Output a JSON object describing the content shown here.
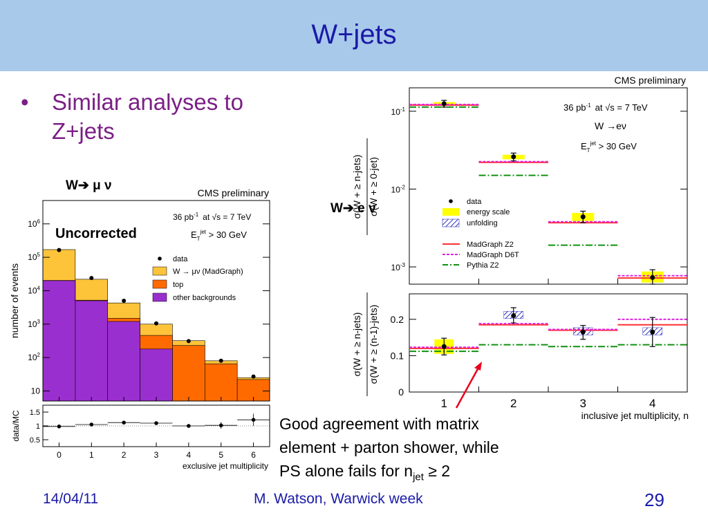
{
  "slide": {
    "title": "W+jets",
    "bullet": "Similar analyses to Z+jets",
    "label_wmu": "W➔ μ ν",
    "label_wenu": "W➔ e ν",
    "note_line1": "Good agreement with matrix",
    "note_line2": "element + parton shower, while",
    "note_line3_prefix": "PS alone fails for n",
    "note_line3_sub": "jet",
    "note_line3_suffix": " ≥ 2",
    "footer_date": "14/04/11",
    "footer_author": "M. Watson, Warwick week",
    "footer_page": "29",
    "colors": {
      "header": "#a9c9ea",
      "title": "#1a1aa8",
      "bullet": "#7b1f86",
      "arrow": "#e8001c"
    }
  },
  "chart_data": [
    {
      "type": "bar",
      "stacked": true,
      "log_y": true,
      "title": "CMS preliminary",
      "ylabel": "number of events",
      "xlabel": "exclusive jet multiplicity",
      "annotation_corner": "Uncorrected",
      "text_lumi": "36 pb",
      "text_lumi_sup": "-1",
      "text_energy": "at √s = 7 TeV",
      "text_cut_main": "E",
      "text_cut_sub": "T",
      "text_cut_sup": "jet",
      "text_cut_rest": " > 30 GeV",
      "categories": [
        "0",
        "1",
        "2",
        "3",
        "4",
        "5",
        "6"
      ],
      "ylim": [
        5,
        5000000
      ],
      "yticks": [
        {
          "value": 10,
          "label": "10"
        },
        {
          "value": 100,
          "label": "10",
          "sup": "2"
        },
        {
          "value": 1000,
          "label": "10",
          "sup": "3"
        },
        {
          "value": 10000,
          "label": "10",
          "sup": "4"
        },
        {
          "value": 100000,
          "label": "10",
          "sup": "5"
        },
        {
          "value": 1000000,
          "label": "10",
          "sup": "6"
        }
      ],
      "series": [
        {
          "name": "other backgrounds",
          "color": "#9a2fcf",
          "top": [
            20000,
            5000,
            1200,
            180,
            5,
            5,
            5
          ]
        },
        {
          "name": "top",
          "color": "#ff6a00",
          "top": [
            20300,
            5200,
            1500,
            460,
            230,
            65,
            22
          ]
        },
        {
          "name": "W → μν (MadGraph)",
          "color": "#fdc43a",
          "top": [
            170000,
            22000,
            4300,
            1000,
            320,
            80,
            25
          ]
        }
      ],
      "data": {
        "name": "data",
        "values": [
          165000,
          24000,
          5000,
          1050,
          310,
          80,
          27
        ]
      },
      "ratio": {
        "ylabel": "data/MC",
        "ylim": [
          0.25,
          1.75
        ],
        "yticks": [
          0.5,
          1,
          1.5
        ],
        "ytick_labels": [
          "0.5",
          "1",
          "1.5"
        ],
        "values": [
          0.98,
          1.05,
          1.12,
          1.1,
          1.0,
          1.02,
          1.22
        ],
        "errors": [
          0.01,
          0.01,
          0.02,
          0.03,
          0.06,
          0.12,
          0.22
        ]
      }
    },
    {
      "type": "line",
      "log_y": true,
      "title": "CMS preliminary",
      "ylabel_line1": "σ(W + ≥ n-jets)",
      "ylabel_line2": "σ(W + ≥ 0-jet)",
      "text_lumi": "36 pb",
      "text_lumi_sup": "-1",
      "text_energy": "at √s = 7 TeV",
      "text_channel": "W →eν",
      "text_cut_main": "E",
      "text_cut_sub": "T",
      "text_cut_sup": "jet",
      "text_cut_rest": " > 30 GeV",
      "x_categories": [
        "1",
        "2",
        "3",
        "4"
      ],
      "xlabel": "inclusive jet multiplicity, n",
      "ylim": [
        0.0006,
        0.2
      ],
      "yticks": [
        {
          "value": 0.1,
          "label": "10",
          "sup": "-1"
        },
        {
          "value": 0.01,
          "label": "10",
          "sup": "-2"
        },
        {
          "value": 0.001,
          "label": "10",
          "sup": "-3"
        }
      ],
      "legend": [
        "data",
        "energy scale",
        "unfolding",
        "MadGraph Z2",
        "MadGraph D6T",
        "Pythia Z2"
      ],
      "colors": {
        "madgraph_z2": "#ff3030",
        "madgraph_d6t": "#e020e0",
        "pythia_z2": "#109010",
        "energy_scale": "#ffff00",
        "unfolding": "#3030c0"
      },
      "data": [
        0.125,
        0.026,
        0.0044,
        0.00073
      ],
      "data_err_low": [
        0.113,
        0.023,
        0.0037,
        0.0006
      ],
      "data_err_high": [
        0.138,
        0.029,
        0.0052,
        0.00092
      ],
      "madgraph_z2": [
        0.12,
        0.022,
        0.0037,
        0.00072
      ],
      "madgraph_d6t": [
        0.122,
        0.0225,
        0.0038,
        0.00077
      ],
      "pythia_z2": [
        0.113,
        0.015,
        0.0019,
        0.00025
      ],
      "ratio_panel": {
        "ylabel_line1": "σ(W + ≥ n-jets)",
        "ylabel_line2": "σ(W + ≥ (n-1)-jets)",
        "ylim": [
          0,
          0.27
        ],
        "yticks": [
          0,
          0.1,
          0.2
        ],
        "ytick_labels": [
          "0",
          "0.1",
          "0.2"
        ],
        "data": [
          0.125,
          0.21,
          0.165,
          0.165
        ],
        "data_err_low": [
          0.102,
          0.19,
          0.145,
          0.125
        ],
        "data_err_high": [
          0.148,
          0.232,
          0.183,
          0.205
        ],
        "madgraph_z2": [
          0.12,
          0.185,
          0.17,
          0.185
        ],
        "madgraph_d6t": [
          0.123,
          0.188,
          0.172,
          0.2
        ],
        "pythia_z2": [
          0.112,
          0.13,
          0.125,
          0.13
        ]
      }
    }
  ]
}
